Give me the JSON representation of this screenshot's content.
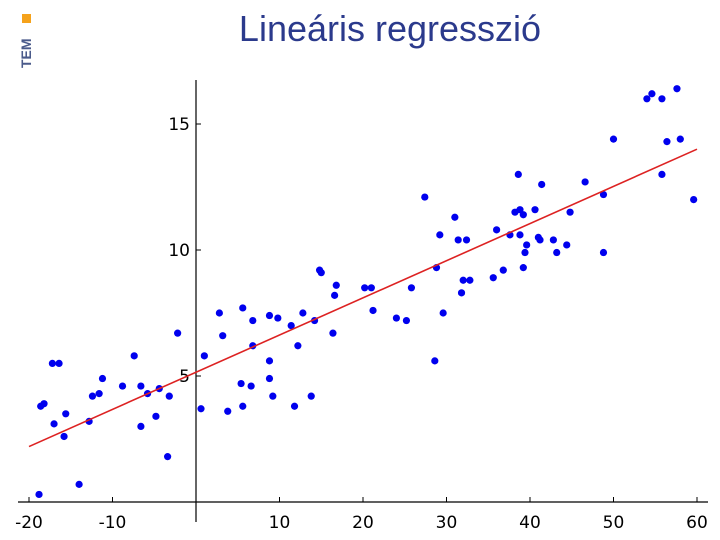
{
  "slide": {
    "title": "Lineáris regresszió",
    "logo_text": "TEM"
  },
  "colors": {
    "title": "#2b3a8c",
    "logo_square": "#f5a21b",
    "points": "#0000ee",
    "regression_line": "#dd2222",
    "axes": "#000000"
  },
  "chart_data": {
    "type": "scatter",
    "title": "",
    "xlabel": "",
    "ylabel": "",
    "xlim": [
      -22,
      61
    ],
    "ylim": [
      -0.2,
      16.8
    ],
    "grid": false,
    "x_ticks": [
      -20,
      -10,
      10,
      20,
      30,
      40,
      50,
      60
    ],
    "x_tick_labels": [
      "-20",
      "-10",
      "10",
      "20",
      "30",
      "40",
      "50",
      "60"
    ],
    "y_ticks": [
      5,
      10,
      15
    ],
    "y_tick_labels": [
      "5",
      "10",
      "15"
    ],
    "regression_line": {
      "x": [
        -20,
        60
      ],
      "y": [
        2.2,
        14.0
      ]
    },
    "points": [
      {
        "x": -18.8,
        "y": 0.3
      },
      {
        "x": -18.6,
        "y": 3.8
      },
      {
        "x": -18.2,
        "y": 3.9
      },
      {
        "x": -17.2,
        "y": 5.5
      },
      {
        "x": -16.4,
        "y": 5.5
      },
      {
        "x": -17.0,
        "y": 3.1
      },
      {
        "x": -15.6,
        "y": 3.5
      },
      {
        "x": -15.8,
        "y": 2.6
      },
      {
        "x": -14.0,
        "y": 0.7
      },
      {
        "x": -12.8,
        "y": 3.2
      },
      {
        "x": -12.4,
        "y": 4.2
      },
      {
        "x": -11.6,
        "y": 4.3
      },
      {
        "x": -11.2,
        "y": 4.9
      },
      {
        "x": -8.8,
        "y": 4.6
      },
      {
        "x": -7.4,
        "y": 5.8
      },
      {
        "x": -6.6,
        "y": 4.6
      },
      {
        "x": -5.8,
        "y": 4.3
      },
      {
        "x": -6.6,
        "y": 3.0
      },
      {
        "x": -4.8,
        "y": 3.4
      },
      {
        "x": -4.4,
        "y": 4.5
      },
      {
        "x": -3.2,
        "y": 4.2
      },
      {
        "x": -3.4,
        "y": 1.8
      },
      {
        "x": -2.2,
        "y": 6.7
      },
      {
        "x": 0.6,
        "y": 3.7
      },
      {
        "x": 1.0,
        "y": 5.8
      },
      {
        "x": 2.8,
        "y": 7.5
      },
      {
        "x": 3.2,
        "y": 6.6
      },
      {
        "x": 3.8,
        "y": 3.6
      },
      {
        "x": 5.6,
        "y": 7.7
      },
      {
        "x": 5.4,
        "y": 4.7
      },
      {
        "x": 5.6,
        "y": 3.8
      },
      {
        "x": 6.6,
        "y": 4.6
      },
      {
        "x": 6.8,
        "y": 6.2
      },
      {
        "x": 6.8,
        "y": 7.2
      },
      {
        "x": 8.8,
        "y": 7.4
      },
      {
        "x": 8.8,
        "y": 4.9
      },
      {
        "x": 8.8,
        "y": 5.6
      },
      {
        "x": 9.2,
        "y": 4.2
      },
      {
        "x": 9.8,
        "y": 7.3
      },
      {
        "x": 11.4,
        "y": 7.0
      },
      {
        "x": 11.8,
        "y": 3.8
      },
      {
        "x": 12.2,
        "y": 6.2
      },
      {
        "x": 12.8,
        "y": 7.5
      },
      {
        "x": 13.8,
        "y": 4.2
      },
      {
        "x": 14.2,
        "y": 7.2
      },
      {
        "x": 14.8,
        "y": 9.2
      },
      {
        "x": 15.0,
        "y": 9.1
      },
      {
        "x": 16.4,
        "y": 6.7
      },
      {
        "x": 16.6,
        "y": 8.2
      },
      {
        "x": 16.8,
        "y": 8.6
      },
      {
        "x": 20.2,
        "y": 8.5
      },
      {
        "x": 21.0,
        "y": 8.5
      },
      {
        "x": 21.2,
        "y": 7.6
      },
      {
        "x": 24.0,
        "y": 7.3
      },
      {
        "x": 25.2,
        "y": 7.2
      },
      {
        "x": 25.8,
        "y": 8.5
      },
      {
        "x": 27.4,
        "y": 12.1
      },
      {
        "x": 28.8,
        "y": 9.3
      },
      {
        "x": 28.6,
        "y": 5.6
      },
      {
        "x": 29.2,
        "y": 10.6
      },
      {
        "x": 29.6,
        "y": 7.5
      },
      {
        "x": 31.0,
        "y": 11.3
      },
      {
        "x": 31.4,
        "y": 10.4
      },
      {
        "x": 31.8,
        "y": 8.3
      },
      {
        "x": 32.0,
        "y": 8.8
      },
      {
        "x": 32.4,
        "y": 10.4
      },
      {
        "x": 32.8,
        "y": 8.8
      },
      {
        "x": 35.6,
        "y": 8.9
      },
      {
        "x": 36.0,
        "y": 10.8
      },
      {
        "x": 36.8,
        "y": 9.2
      },
      {
        "x": 37.6,
        "y": 10.6
      },
      {
        "x": 38.2,
        "y": 11.5
      },
      {
        "x": 38.6,
        "y": 13.0
      },
      {
        "x": 38.8,
        "y": 10.6
      },
      {
        "x": 38.8,
        "y": 11.6
      },
      {
        "x": 39.2,
        "y": 11.4
      },
      {
        "x": 39.2,
        "y": 9.3
      },
      {
        "x": 39.4,
        "y": 9.9
      },
      {
        "x": 39.6,
        "y": 10.2
      },
      {
        "x": 40.6,
        "y": 11.6
      },
      {
        "x": 41.0,
        "y": 10.5
      },
      {
        "x": 41.4,
        "y": 12.6
      },
      {
        "x": 41.2,
        "y": 10.4
      },
      {
        "x": 42.8,
        "y": 10.4
      },
      {
        "x": 43.2,
        "y": 9.9
      },
      {
        "x": 44.4,
        "y": 10.2
      },
      {
        "x": 44.8,
        "y": 11.5
      },
      {
        "x": 46.6,
        "y": 12.7
      },
      {
        "x": 48.8,
        "y": 12.2
      },
      {
        "x": 48.8,
        "y": 9.9
      },
      {
        "x": 50.0,
        "y": 14.4
      },
      {
        "x": 54.0,
        "y": 16.0
      },
      {
        "x": 54.6,
        "y": 16.2
      },
      {
        "x": 55.8,
        "y": 16.0
      },
      {
        "x": 55.8,
        "y": 13.0
      },
      {
        "x": 56.4,
        "y": 14.3
      },
      {
        "x": 57.6,
        "y": 16.4
      },
      {
        "x": 58.0,
        "y": 14.4
      },
      {
        "x": 59.6,
        "y": 12.0
      }
    ]
  }
}
